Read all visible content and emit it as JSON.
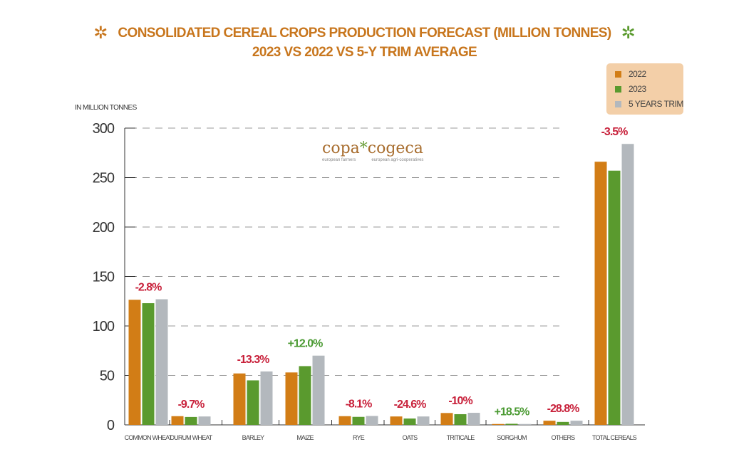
{
  "chart_data": {
    "type": "bar",
    "title": "CONSOLIDATED CEREAL CROPS PRODUCTION FORECAST (MILLION TONNES)",
    "subtitle": "2023 VS 2022 VS 5-Y TRIM AVERAGE",
    "ylabel": "IN MILLION TONNES",
    "xlabel": "",
    "ylim": [
      0,
      300
    ],
    "yticks": [
      0,
      50,
      100,
      150,
      200,
      250,
      300
    ],
    "grid": true,
    "legend_position": "top-right",
    "categories": [
      "COMMON WHEAT",
      "DURUM WHEAT",
      "BARLEY",
      "MAIZE",
      "RYE",
      "OATS",
      "TRITICALE",
      "SORGHUM",
      "OTHERS",
      "TOTAL CEREALS"
    ],
    "series": [
      {
        "name": "2022",
        "color": "#d27d16",
        "values": [
          126.5,
          8.8,
          52,
          53,
          8.8,
          8.5,
          12,
          0.9,
          4.2,
          266
        ]
      },
      {
        "name": "2023",
        "color": "#5a9a2e",
        "values": [
          123,
          8,
          45,
          59.4,
          8.1,
          6.4,
          10.8,
          1.1,
          3.0,
          257
        ]
      },
      {
        "name": "5 YEARS TRIM",
        "color": "#b3b8bd",
        "values": [
          127,
          8.5,
          54,
          70,
          9,
          8.5,
          12.2,
          0.9,
          4.2,
          284
        ]
      }
    ],
    "annotations": [
      "-2.8%",
      "-9.7%",
      "-13.3%",
      "+12.0%",
      "-8.1%",
      "-24.6%",
      "-10%",
      "+18.5%",
      "-28.8%",
      "-3.5%"
    ],
    "annotation_colors": [
      "#c8203a",
      "#c8203a",
      "#c8203a",
      "#4a9a32",
      "#c8203a",
      "#c8203a",
      "#c8203a",
      "#4a9a32",
      "#c8203a",
      "#c8203a"
    ]
  },
  "logo": {
    "name_left": "copa",
    "name_right": "cogeca",
    "sub_left": "european farmers",
    "sub_right": "european agri-cooperatives"
  }
}
